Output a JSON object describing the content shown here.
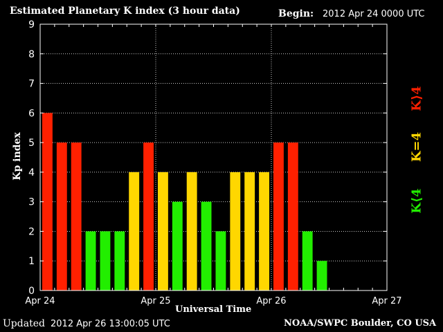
{
  "header": {
    "title": "Estimated Planetary K index (3 hour data)",
    "begin_label": "Begin:",
    "begin_value": "2012 Apr 24 0000 UTC"
  },
  "footer": {
    "updated_label": "Updated",
    "updated_value": "2012 Apr 26 13:00:05 UTC",
    "source": "NOAA/SWPC Boulder, CO USA"
  },
  "legend": {
    "high": "K⟩4",
    "mid": "K=4",
    "low": "K⟨4"
  },
  "colors": {
    "high": "#ff2000",
    "mid": "#ffd700",
    "low": "#22ee00",
    "axis": "#ffffff",
    "grid": "#ffffff"
  },
  "chart_data": {
    "type": "bar",
    "title": "Estimated Planetary K index (3 hour data)",
    "xlabel": "Universal Time",
    "ylabel": "Kp index",
    "ylim": [
      0,
      9
    ],
    "yticks": [
      "0",
      "1",
      "2",
      "3",
      "4",
      "5",
      "6",
      "7",
      "8",
      "9"
    ],
    "xticks": [
      "Apr 24",
      "Apr 25",
      "Apr 26",
      "Apr 27"
    ],
    "bars_per_day": 8,
    "grid": true,
    "values": [
      6,
      5,
      5,
      2,
      2,
      2,
      4,
      5,
      4,
      3,
      4,
      3,
      2,
      4,
      4,
      4,
      5,
      5,
      2,
      1
    ]
  }
}
